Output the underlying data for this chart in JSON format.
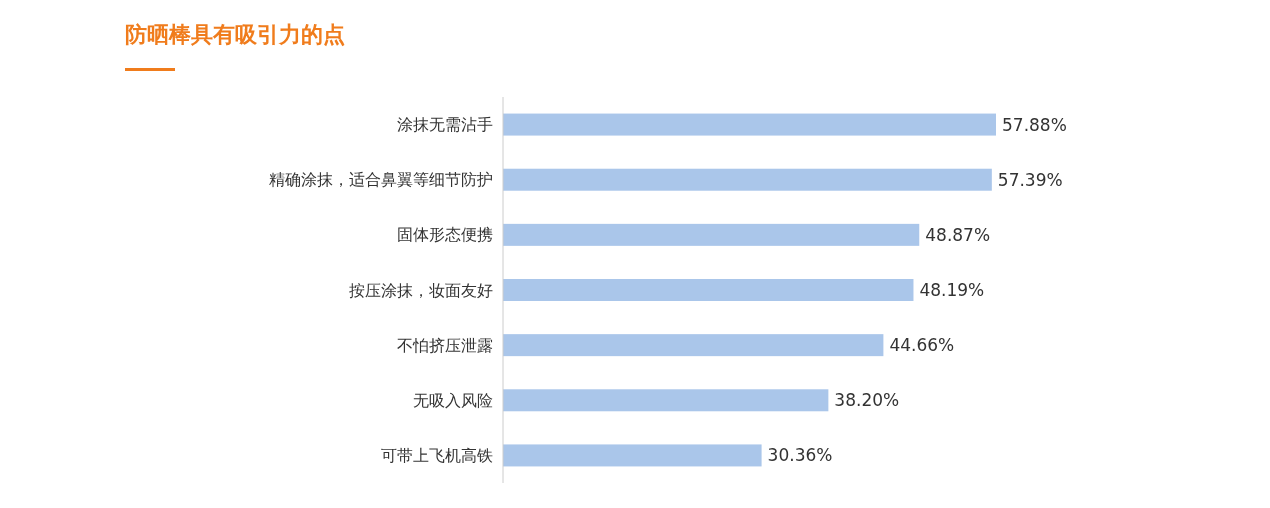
{
  "chart_data": {
    "type": "bar",
    "orientation": "horizontal",
    "title": "防晒棒具有吸引力的点",
    "categories": [
      "涂抹无需沾手",
      "精确涂抹，适合鼻翼等细节防护",
      "固体形态便携",
      "按压涂抹，妆面友好",
      "不怕挤压泄露",
      "无吸入风险",
      "可带上飞机高铁"
    ],
    "values": [
      57.88,
      57.39,
      48.87,
      48.19,
      44.66,
      38.2,
      30.36
    ],
    "value_labels": [
      "57.88%",
      "57.39%",
      "48.87%",
      "48.19%",
      "44.66%",
      "38.20%",
      "30.36%"
    ],
    "color": "#aac6ea"
  }
}
